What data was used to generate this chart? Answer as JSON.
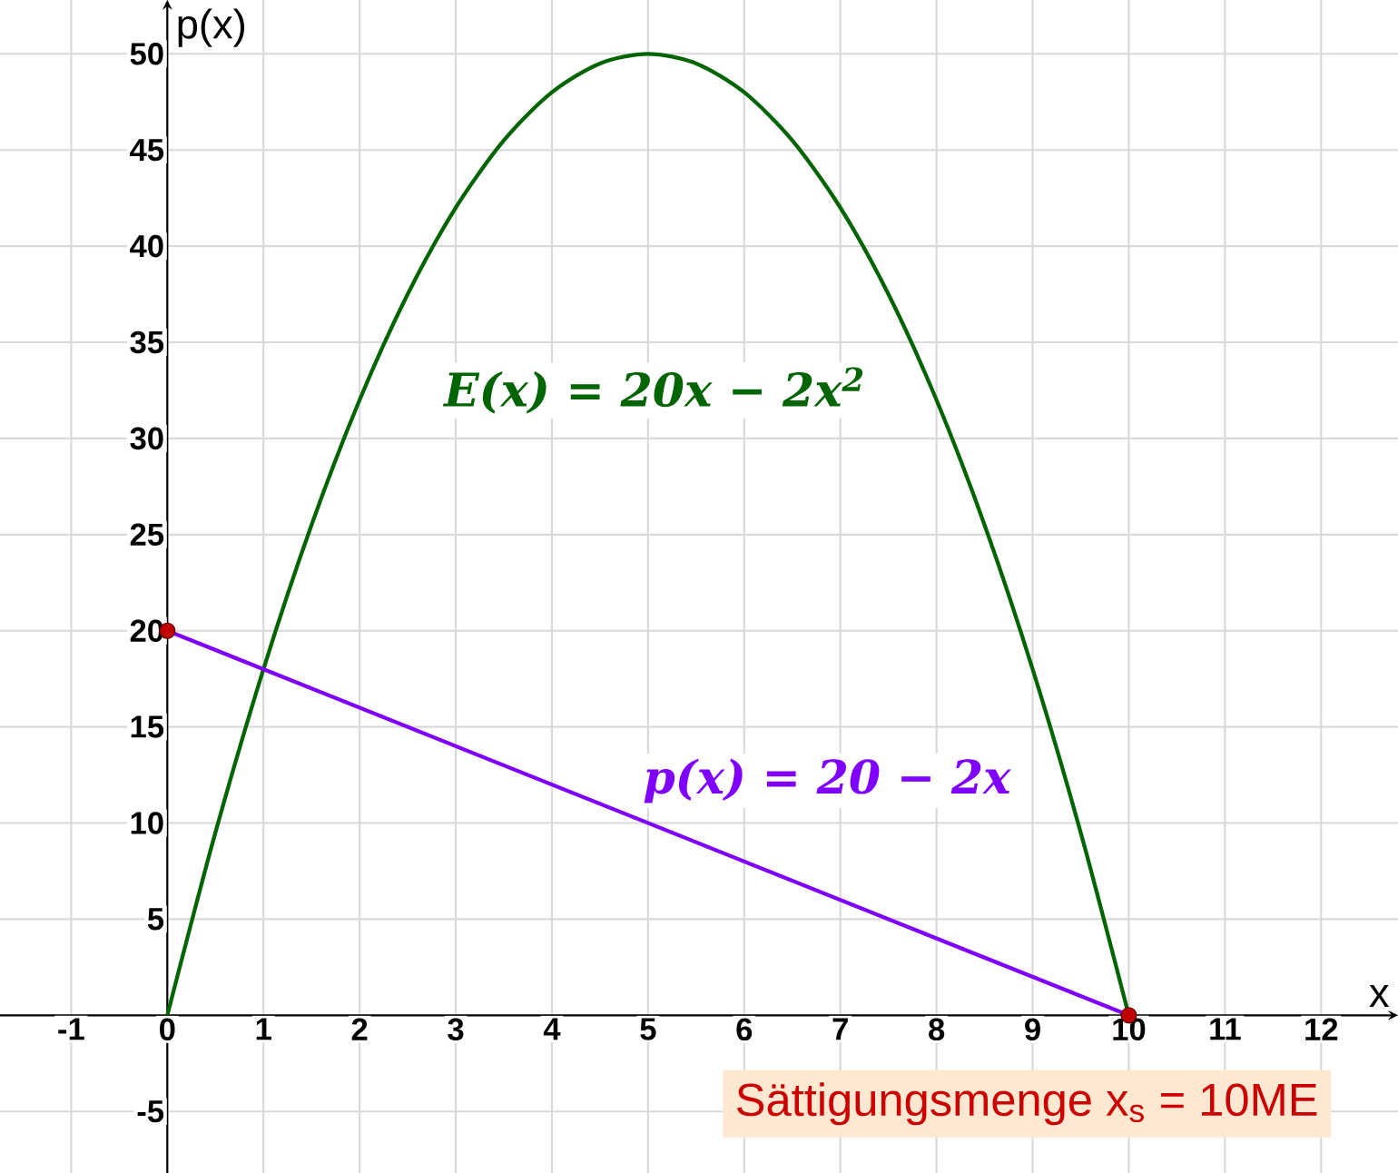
{
  "chart_data": {
    "type": "line",
    "xlabel": "x",
    "ylabel": "p(x)",
    "xlim": [
      -1.74,
      12.8
    ],
    "ylim": [
      -8.2,
      52.8
    ],
    "xticks": [
      -1,
      0,
      1,
      2,
      3,
      4,
      5,
      6,
      7,
      8,
      9,
      10,
      11,
      12
    ],
    "yticks": [
      -5,
      5,
      10,
      15,
      20,
      25,
      30,
      35,
      40,
      45,
      50
    ],
    "grid": true,
    "series": [
      {
        "name": "E(x) = 20x − 2x$^{2}$",
        "color": "#006400",
        "x": [
          0,
          0.5,
          1,
          1.5,
          2,
          2.5,
          3,
          3.5,
          4,
          4.5,
          5,
          5.5,
          6,
          6.5,
          7,
          7.5,
          8,
          8.5,
          9,
          9.5,
          10
        ],
        "values": [
          0,
          9.5,
          18,
          25.5,
          32,
          37.5,
          42,
          45.5,
          48,
          49.5,
          50,
          49.5,
          48,
          45.5,
          42,
          37.5,
          32,
          25.5,
          18,
          9.5,
          0
        ]
      },
      {
        "name": "p(x) = 20 − 2x",
        "color": "#8000ff",
        "x": [
          0,
          10
        ],
        "values": [
          20,
          0
        ]
      },
      {
        "type": "scatter",
        "color": "#c00000",
        "x": [
          0,
          10
        ],
        "values": [
          20,
          0
        ],
        "marker": "circle"
      }
    ],
    "annotations": [
      "Sättigungsmenge x$_{s}$ = 10ME"
    ]
  }
}
